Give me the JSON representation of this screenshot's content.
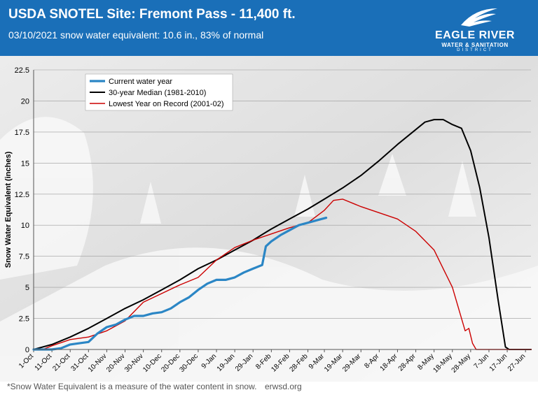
{
  "header": {
    "title": "USDA SNOTEL Site: Fremont Pass - 11,400 ft.",
    "subtitle": "03/10/2021 snow water equivalent: 10.6 in., 83% of normal"
  },
  "logo": {
    "line1": "EAGLE RIVER",
    "line2": "WATER & SANITATION",
    "line3": "DISTRICT"
  },
  "footer": {
    "note": "*Snow Water Equivalent is a measure of the water content in snow.",
    "site": "erwsd.org"
  },
  "colors": {
    "banner": "#1a6fb8",
    "current": "#2b86c5",
    "median": "#000000",
    "lowest": "#cc0000"
  },
  "chart_data": {
    "type": "line",
    "xlabel": "",
    "ylabel": "Snow Water Equivalent (inches)",
    "ylim": [
      0,
      22.5
    ],
    "yticks": [
      "0",
      "2.5",
      "5",
      "7.5",
      "10",
      "12.5",
      "15",
      "17.5",
      "20",
      "22.5"
    ],
    "xlim": [
      "1-Oct",
      "30-Jun"
    ],
    "xticks": [
      "1-Oct",
      "11-Oct",
      "21-Oct",
      "31-Oct",
      "10-Nov",
      "20-Nov",
      "30-Nov",
      "10-Dec",
      "20-Dec",
      "30-Dec",
      "9-Jan",
      "19-Jan",
      "29-Jan",
      "8-Feb",
      "18-Feb",
      "28-Feb",
      "9-Mar",
      "19-Mar",
      "29-Mar",
      "8-Apr",
      "18-Apr",
      "28-Apr",
      "8-May",
      "18-May",
      "28-May",
      "7-Jun",
      "17-Jun",
      "27-Jun"
    ],
    "grid": true,
    "legend_position": "top-left",
    "series": [
      {
        "name": "Current water year",
        "points": [
          [
            "1-Oct",
            0
          ],
          [
            "11-Oct",
            0
          ],
          [
            "16-Oct",
            0.1
          ],
          [
            "21-Oct",
            0.4
          ],
          [
            "26-Oct",
            0.5
          ],
          [
            "31-Oct",
            0.6
          ],
          [
            "5-Nov",
            1.3
          ],
          [
            "10-Nov",
            1.8
          ],
          [
            "15-Nov",
            2.0
          ],
          [
            "20-Nov",
            2.4
          ],
          [
            "25-Nov",
            2.7
          ],
          [
            "30-Nov",
            2.7
          ],
          [
            "5-Dec",
            2.9
          ],
          [
            "10-Dec",
            3.0
          ],
          [
            "15-Dec",
            3.3
          ],
          [
            "20-Dec",
            3.8
          ],
          [
            "25-Dec",
            4.2
          ],
          [
            "30-Dec",
            4.8
          ],
          [
            "4-Jan",
            5.3
          ],
          [
            "9-Jan",
            5.6
          ],
          [
            "14-Jan",
            5.6
          ],
          [
            "19-Jan",
            5.8
          ],
          [
            "24-Jan",
            6.2
          ],
          [
            "29-Jan",
            6.5
          ],
          [
            "3-Feb",
            6.8
          ],
          [
            "5-Feb",
            8.3
          ],
          [
            "8-Feb",
            8.7
          ],
          [
            "13-Feb",
            9.2
          ],
          [
            "18-Feb",
            9.6
          ],
          [
            "23-Feb",
            10.0
          ],
          [
            "28-Feb",
            10.2
          ],
          [
            "5-Mar",
            10.4
          ],
          [
            "10-Mar",
            10.6
          ]
        ]
      },
      {
        "name": "30-year Median (1981-2010)",
        "points": [
          [
            "1-Oct",
            0
          ],
          [
            "11-Oct",
            0.4
          ],
          [
            "21-Oct",
            1.0
          ],
          [
            "31-Oct",
            1.7
          ],
          [
            "10-Nov",
            2.5
          ],
          [
            "20-Nov",
            3.3
          ],
          [
            "30-Nov",
            4.0
          ],
          [
            "10-Dec",
            4.8
          ],
          [
            "20-Dec",
            5.6
          ],
          [
            "30-Dec",
            6.5
          ],
          [
            "9-Jan",
            7.2
          ],
          [
            "19-Jan",
            8.0
          ],
          [
            "29-Jan",
            8.8
          ],
          [
            "8-Feb",
            9.7
          ],
          [
            "18-Feb",
            10.5
          ],
          [
            "28-Feb",
            11.3
          ],
          [
            "9-Mar",
            12.1
          ],
          [
            "19-Mar",
            13.0
          ],
          [
            "29-Mar",
            14.0
          ],
          [
            "8-Apr",
            15.2
          ],
          [
            "18-Apr",
            16.5
          ],
          [
            "28-Apr",
            17.7
          ],
          [
            "3-May",
            18.3
          ],
          [
            "8-May",
            18.5
          ],
          [
            "13-May",
            18.5
          ],
          [
            "18-May",
            18.1
          ],
          [
            "23-May",
            17.8
          ],
          [
            "28-May",
            16.0
          ],
          [
            "2-Jun",
            13.0
          ],
          [
            "7-Jun",
            9.0
          ],
          [
            "12-Jun",
            4.0
          ],
          [
            "16-Jun",
            0.2
          ],
          [
            "18-Jun",
            0
          ],
          [
            "30-Jun",
            0
          ]
        ]
      },
      {
        "name": "Lowest Year on Record (2001-02)",
        "points": [
          [
            "1-Oct",
            0
          ],
          [
            "6-Oct",
            0
          ],
          [
            "11-Oct",
            0.3
          ],
          [
            "21-Oct",
            0.8
          ],
          [
            "31-Oct",
            1.0
          ],
          [
            "10-Nov",
            1.5
          ],
          [
            "20-Nov",
            2.3
          ],
          [
            "30-Nov",
            3.8
          ],
          [
            "10-Dec",
            4.5
          ],
          [
            "20-Dec",
            5.2
          ],
          [
            "30-Dec",
            5.8
          ],
          [
            "9-Jan",
            7.2
          ],
          [
            "19-Jan",
            8.2
          ],
          [
            "29-Jan",
            8.8
          ],
          [
            "8-Feb",
            9.3
          ],
          [
            "18-Feb",
            9.8
          ],
          [
            "28-Feb",
            10.2
          ],
          [
            "9-Mar",
            11.2
          ],
          [
            "14-Mar",
            12.0
          ],
          [
            "19-Mar",
            12.1
          ],
          [
            "29-Mar",
            11.5
          ],
          [
            "8-Apr",
            11.0
          ],
          [
            "18-Apr",
            10.5
          ],
          [
            "28-Apr",
            9.5
          ],
          [
            "8-May",
            8.0
          ],
          [
            "13-May",
            6.5
          ],
          [
            "18-May",
            5.0
          ],
          [
            "23-May",
            2.5
          ],
          [
            "25-May",
            1.5
          ],
          [
            "27-May",
            1.7
          ],
          [
            "29-May",
            0.5
          ],
          [
            "31-May",
            0
          ],
          [
            "30-Jun",
            0
          ]
        ]
      }
    ]
  }
}
